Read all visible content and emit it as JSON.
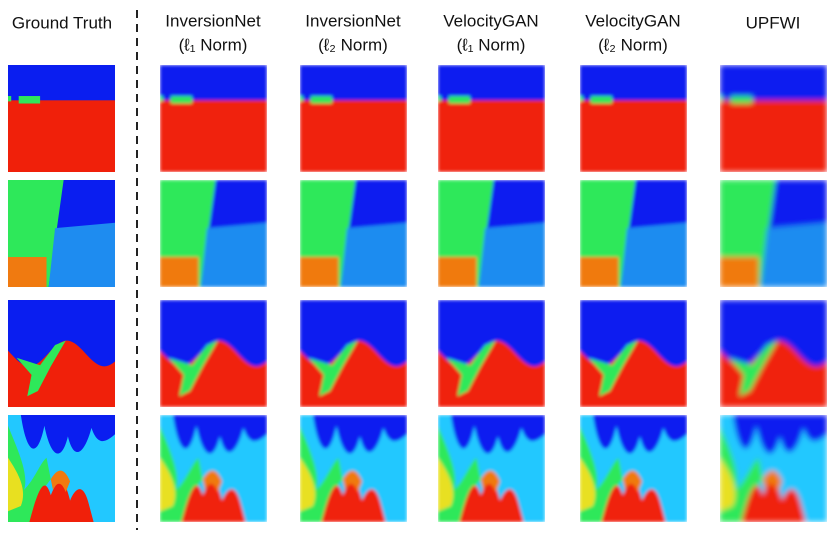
{
  "columns": [
    {
      "title": "Ground Truth"
    },
    {
      "title": "InversionNet",
      "subtitle": "(ℓ₁ Norm)"
    },
    {
      "title": "InversionNet",
      "subtitle": "(ℓ₂ Norm)"
    },
    {
      "title": "VelocityGAN",
      "subtitle": "(ℓ₁ Norm)"
    },
    {
      "title": "VelocityGAN",
      "subtitle": "(ℓ₂ Norm)"
    },
    {
      "title": "UPFWI"
    }
  ]
}
